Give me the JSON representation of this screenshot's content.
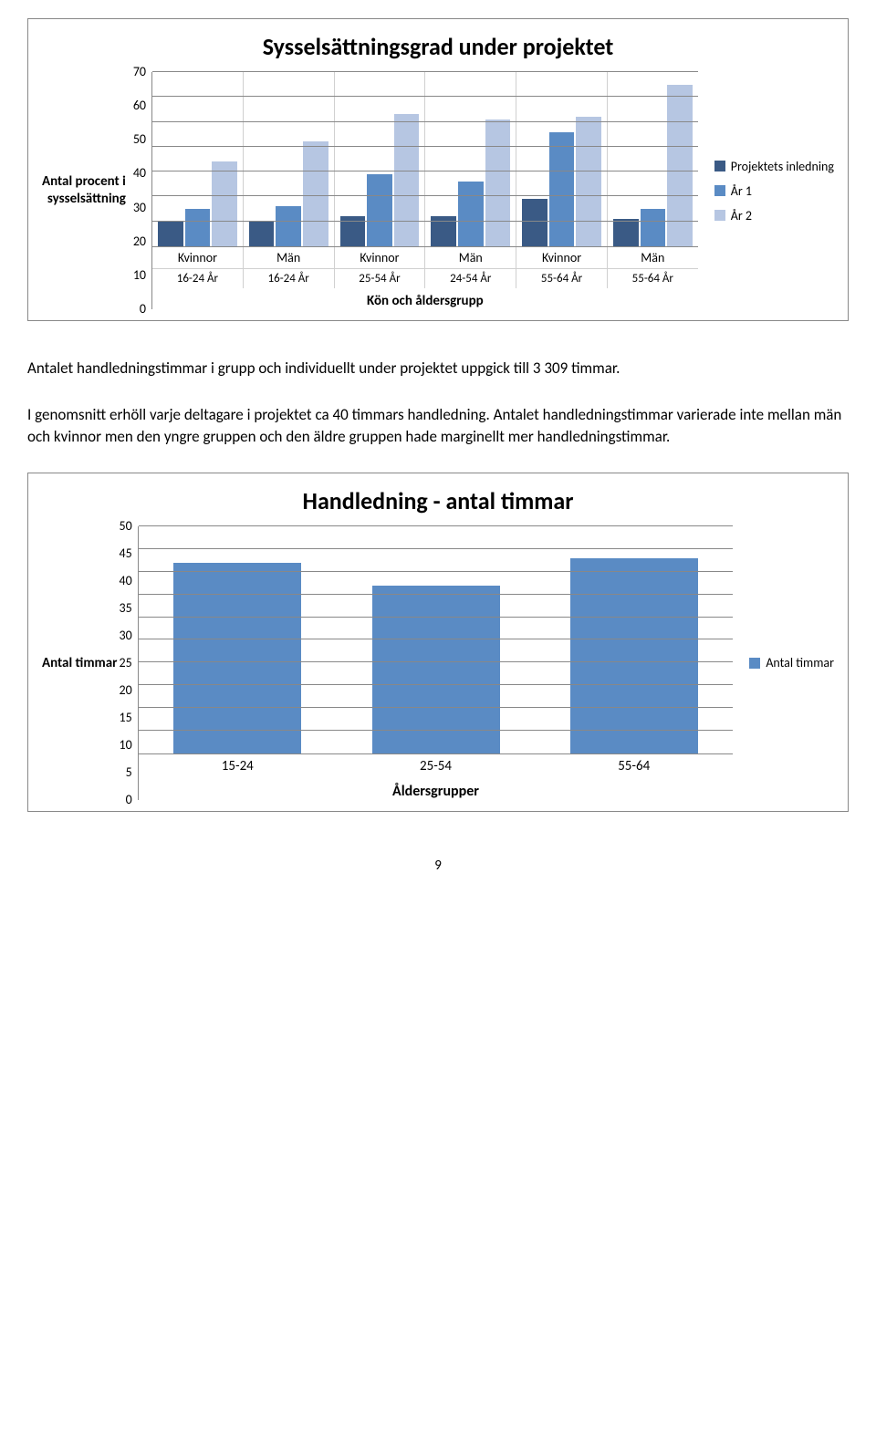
{
  "chart1": {
    "title": "Sysselsättningsgrad under projektet",
    "y_label_lines": [
      "Antal procent  i",
      "sysselsättning"
    ],
    "ylim": [
      0,
      70
    ],
    "ytick_step": 10,
    "yticks": [
      70,
      60,
      50,
      40,
      30,
      20,
      10,
      0
    ],
    "background_color": "#ffffff",
    "grid_color": "#888888",
    "series": [
      {
        "name": "Projektets inledning",
        "color": "#3a5a85"
      },
      {
        "name": "År 1",
        "color": "#5a8bc4"
      },
      {
        "name": "År 2",
        "color": "#b6c6e2"
      }
    ],
    "groups": [
      {
        "top": "Kvinnor",
        "bottom": "16-24 År",
        "values": [
          10,
          15,
          34
        ]
      },
      {
        "top": "Män",
        "bottom": "16-24 År",
        "values": [
          10,
          16,
          42
        ]
      },
      {
        "top": "Kvinnor",
        "bottom": "25-54 År",
        "values": [
          12,
          29,
          53
        ]
      },
      {
        "top": "Män",
        "bottom": "24-54 År",
        "values": [
          12,
          26,
          51
        ]
      },
      {
        "top": "Kvinnor",
        "bottom": "55-64 År",
        "values": [
          19,
          46,
          52
        ]
      },
      {
        "top": "Män",
        "bottom": "55-64 År",
        "values": [
          11,
          15,
          65
        ]
      }
    ],
    "x_caption": "Kön och åldersgrupp"
  },
  "paragraphs": {
    "p1": "Antalet handledningstimmar i grupp och individuellt under projektet uppgick till 3 309 timmar.",
    "p2": "I genomsnitt erhöll varje deltagare i projektet ca 40 timmars handledning. Antalet handledningstimmar varierade inte mellan män och kvinnor men den yngre gruppen och den äldre gruppen hade marginellt mer handledningstimmar."
  },
  "chart2": {
    "title": "Handledning - antal timmar",
    "y_label": "Antal timmar",
    "ylim": [
      0,
      50
    ],
    "ytick_step": 5,
    "yticks": [
      50,
      45,
      40,
      35,
      30,
      25,
      20,
      15,
      10,
      5,
      0
    ],
    "bar_color": "#5a8bc4",
    "grid_color": "#888888",
    "categories": [
      "15-24",
      "25-54",
      "55-64"
    ],
    "values": [
      42,
      37,
      43
    ],
    "x_caption": "Åldersgrupper",
    "legend_label": "Antal timmar"
  },
  "page_number": "9"
}
